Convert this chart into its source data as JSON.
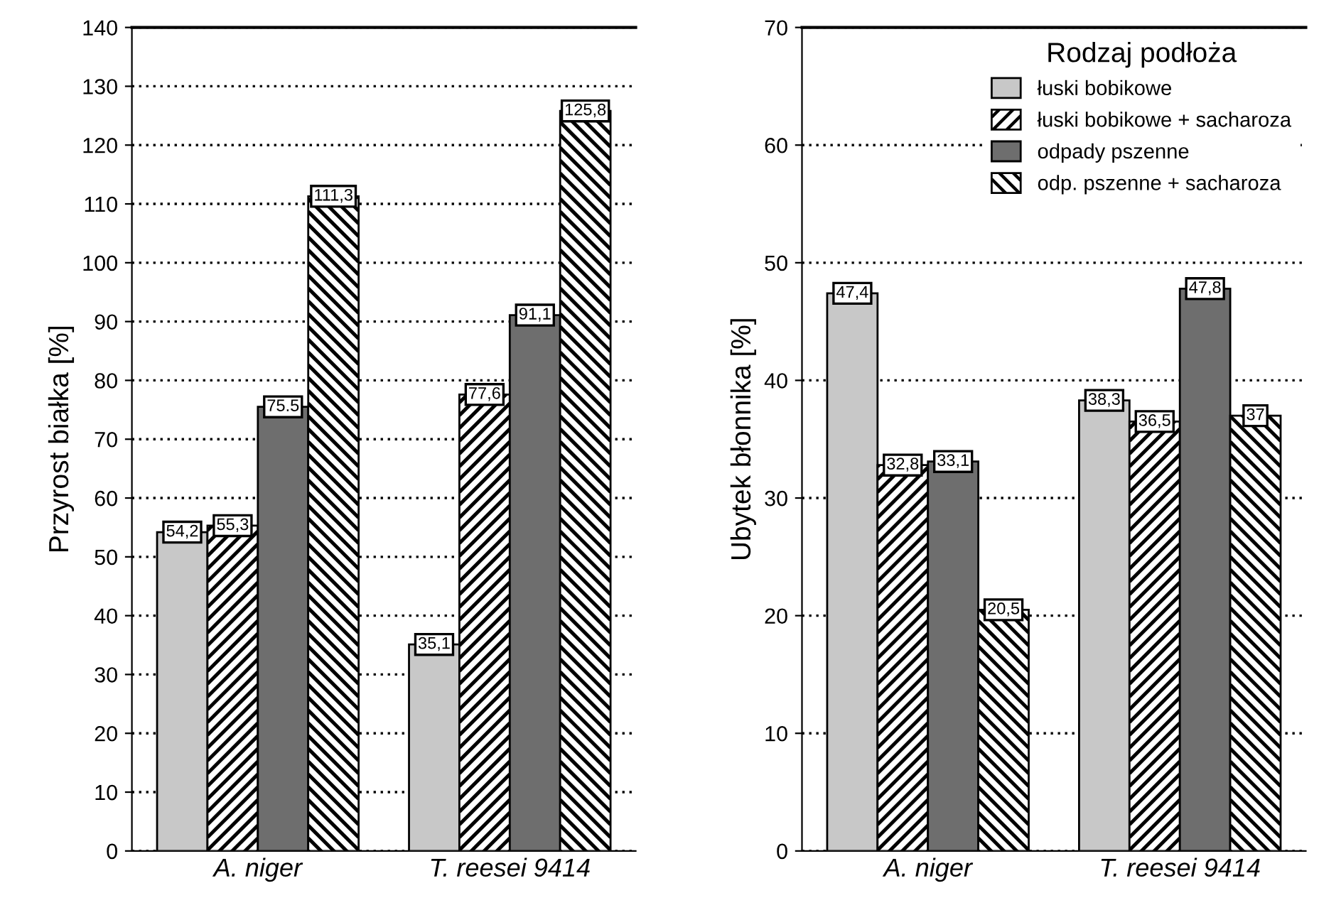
{
  "chart_data": [
    {
      "type": "bar",
      "ylabel": "Przyrost białka [%]",
      "categories": [
        "A. niger",
        "T. reesei 9414"
      ],
      "series": [
        {
          "color": "#c8c8c8",
          "values": [
            54.2,
            35.1
          ],
          "value_labels": [
            "54,2",
            "35,1"
          ]
        },
        {
          "color": "#ffffff",
          "values": [
            55.3,
            77.6
          ],
          "value_labels": [
            "55,3",
            "77,6"
          ]
        },
        {
          "color": "#6e6e6e",
          "values": [
            75.5,
            91.1
          ],
          "value_labels": [
            "75.5",
            "91,1"
          ]
        },
        {
          "color": "#ffffff",
          "values": [
            111.3,
            125.8
          ],
          "value_labels": [
            "111,3",
            "125,8"
          ]
        }
      ],
      "ylim": [
        0,
        140
      ],
      "yticks": [
        0,
        10,
        20,
        30,
        40,
        50,
        60,
        70,
        80,
        90,
        100,
        110,
        120,
        130,
        140
      ],
      "grid": "y"
    },
    {
      "type": "bar",
      "ylabel": "Ubytek błonnika [%]",
      "legend_title": "Rodzaj podłoża",
      "categories": [
        "A. niger",
        "T. reesei 9414"
      ],
      "series": [
        {
          "name": "łuski bobikowe",
          "color": "#c8c8c8",
          "values": [
            47.4,
            38.3
          ],
          "value_labels": [
            "47,4",
            "38,3"
          ]
        },
        {
          "name": "łuski bobikowe + sacharoza",
          "color": "#ffffff",
          "values": [
            32.8,
            36.5
          ],
          "value_labels": [
            "32,8",
            "36,5"
          ]
        },
        {
          "name": "odpady pszenne",
          "color": "#6e6e6e",
          "values": [
            33.1,
            47.8
          ],
          "value_labels": [
            "33,1",
            "47,8"
          ]
        },
        {
          "name": "odp. pszenne + sacharoza",
          "color": "#ffffff",
          "values": [
            20.5,
            37
          ],
          "value_labels": [
            "20,5",
            "37"
          ]
        }
      ],
      "ylim": [
        0,
        70
      ],
      "yticks": [
        0,
        10,
        20,
        30,
        40,
        50,
        60,
        70
      ],
      "grid": "y",
      "legend": "top right"
    }
  ]
}
